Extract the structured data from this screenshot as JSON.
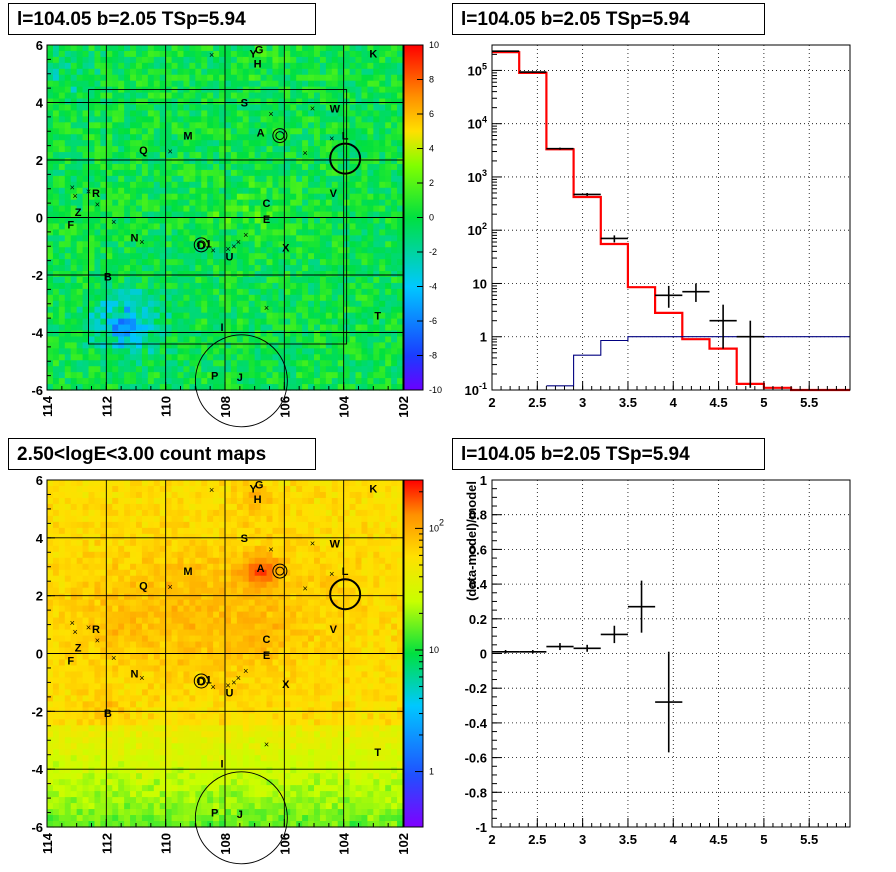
{
  "chart_data": [
    {
      "type": "heatmap",
      "panel": "residual-map",
      "title": "l=104.05 b=2.05 TSp=5.94",
      "xlim": [
        114,
        102
      ],
      "ylim": [
        -6,
        6
      ],
      "x_ticks": [
        "114",
        "112",
        "110",
        "108",
        "106",
        "104",
        "102"
      ],
      "y_ticks": [
        "6",
        "4",
        "2",
        "0",
        "-2",
        "-4",
        "-6"
      ],
      "colorbar": {
        "range": [
          -10,
          10
        ],
        "ticks": [
          "10",
          "8",
          "6",
          "4",
          "2",
          "0",
          "-2",
          "-4",
          "-6",
          "-8",
          "-10"
        ]
      },
      "colors": {
        "low": "#6a00ff",
        "mid": "#00e040",
        "high": "#ff0000"
      },
      "grid": true
    },
    {
      "type": "line",
      "panel": "spectrum",
      "title": "l=104.05 b=2.05 TSp=5.94",
      "xlim": [
        2,
        5.95
      ],
      "ylim": [
        0.1,
        300000
      ],
      "yscale": "log",
      "x_ticks": [
        "2",
        "2.5",
        "3",
        "3.5",
        "4",
        "4.5",
        "5",
        "5.5"
      ],
      "y_ticks": [
        "10^5",
        "10^4",
        "10^3",
        "10^2",
        "10",
        "1",
        "10^-1"
      ],
      "grid": true,
      "series": [
        {
          "color": "#ff0000",
          "style": "step",
          "edges": [
            2,
            2.3,
            2.6,
            2.9,
            3.2,
            3.5,
            3.8,
            4.1,
            4.4,
            4.7,
            5.0,
            5.3,
            5.95
          ],
          "values": [
            220000,
            90000,
            3300,
            420,
            55,
            8.5,
            2.8,
            0.9,
            0.6,
            0.13,
            0.11,
            0.1
          ]
        },
        {
          "color": "#000080",
          "style": "step",
          "edges": [
            2.6,
            2.9,
            3.2,
            3.5,
            5.95
          ],
          "values": [
            0.12,
            0.45,
            0.85,
            1.0
          ]
        },
        {
          "color": "#000000",
          "style": "errorbar",
          "points": [
            {
              "x": 2.15,
              "y": 230000,
              "xerr": 0.15,
              "ylo": 225000,
              "yhi": 235000
            },
            {
              "x": 2.45,
              "y": 93000,
              "xerr": 0.15,
              "ylo": 90000,
              "yhi": 96000
            },
            {
              "x": 2.75,
              "y": 3400,
              "xerr": 0.15,
              "ylo": 3250,
              "yhi": 3550
            },
            {
              "x": 3.05,
              "y": 470,
              "xerr": 0.15,
              "ylo": 440,
              "yhi": 500
            },
            {
              "x": 3.35,
              "y": 70,
              "xerr": 0.15,
              "ylo": 59,
              "yhi": 80
            },
            {
              "x": 3.95,
              "y": 6,
              "xerr": 0.15,
              "ylo": 3.5,
              "yhi": 9
            },
            {
              "x": 4.25,
              "y": 7,
              "xerr": 0.15,
              "ylo": 4.5,
              "yhi": 10
            },
            {
              "x": 4.55,
              "y": 2,
              "xerr": 0.15,
              "ylo": 0.6,
              "yhi": 4
            },
            {
              "x": 4.85,
              "y": 1,
              "xerr": 0.15,
              "ylo": 0.11,
              "yhi": 2.0
            }
          ]
        }
      ]
    },
    {
      "type": "heatmap",
      "panel": "count-map",
      "title": "2.50<logE<3.00 count maps",
      "xlim": [
        114,
        102
      ],
      "ylim": [
        -6,
        6
      ],
      "x_ticks": [
        "114",
        "112",
        "110",
        "108",
        "106",
        "104",
        "102"
      ],
      "y_ticks": [
        "6",
        "4",
        "2",
        "0",
        "-2",
        "-4",
        "-6"
      ],
      "colorbar": {
        "scale": "log",
        "ticks": [
          "10^2",
          "10",
          "1"
        ]
      },
      "colors": {
        "low": "#8000ff",
        "mid": "#00e040",
        "high": "#ff0000"
      },
      "grid": true
    },
    {
      "type": "scatter",
      "panel": "residual-ratio",
      "title": "l=104.05 b=2.05 TSp=5.94",
      "ylabel": "(data-model)/model",
      "xlim": [
        2,
        5.95
      ],
      "ylim": [
        -1,
        1
      ],
      "x_ticks": [
        "2",
        "2.5",
        "3",
        "3.5",
        "4",
        "4.5",
        "5",
        "5.5"
      ],
      "y_ticks": [
        "1",
        "0.8",
        "0.6",
        "0.4",
        "0.2",
        "0",
        "-0.2",
        "-0.4",
        "-0.6",
        "-0.8",
        "-1"
      ],
      "grid": true,
      "points": [
        {
          "x": 2.15,
          "y": 0.01,
          "xerr": 0.15,
          "yerr": 0.01
        },
        {
          "x": 2.45,
          "y": 0.01,
          "xerr": 0.15,
          "yerr": 0.01
        },
        {
          "x": 2.75,
          "y": 0.04,
          "xerr": 0.15,
          "yerr": 0.02
        },
        {
          "x": 3.05,
          "y": 0.03,
          "xerr": 0.15,
          "yerr": 0.02
        },
        {
          "x": 3.35,
          "y": 0.11,
          "xerr": 0.15,
          "yerr": 0.05
        },
        {
          "x": 3.65,
          "y": 0.27,
          "xerr": 0.15,
          "yerr": 0.15
        },
        {
          "x": 3.95,
          "y": -0.28,
          "xerr": 0.15,
          "yerr": 0.29
        }
      ]
    }
  ],
  "sources": [
    {
      "name": "K",
      "l": 103.0,
      "b": 5.7
    },
    {
      "name": "Y",
      "l": 107.05,
      "b": 5.7
    },
    {
      "name": "G",
      "l": 106.85,
      "b": 5.85
    },
    {
      "name": "H",
      "l": 106.9,
      "b": 5.35
    },
    {
      "name": "S",
      "l": 107.35,
      "b": 4.0
    },
    {
      "name": "W",
      "l": 104.3,
      "b": 3.8
    },
    {
      "name": "A",
      "l": 106.8,
      "b": 2.95
    },
    {
      "name": "M",
      "l": 109.25,
      "b": 2.85
    },
    {
      "name": "Q",
      "l": 110.75,
      "b": 2.35
    },
    {
      "name": "L",
      "l": 103.95,
      "b": 2.85
    },
    {
      "name": "R",
      "l": 112.35,
      "b": 0.85
    },
    {
      "name": "V",
      "l": 104.35,
      "b": 0.85
    },
    {
      "name": "C",
      "l": 106.6,
      "b": 0.5
    },
    {
      "name": "Z",
      "l": 112.95,
      "b": 0.2
    },
    {
      "name": "E",
      "l": 106.6,
      "b": -0.05
    },
    {
      "name": "F",
      "l": 113.2,
      "b": -0.25
    },
    {
      "name": "N",
      "l": 111.05,
      "b": -0.7
    },
    {
      "name": "1",
      "l": 108.55,
      "b": -0.9
    },
    {
      "name": "D",
      "l": 108.8,
      "b": -0.95
    },
    {
      "name": "X",
      "l": 105.95,
      "b": -1.05
    },
    {
      "name": "U",
      "l": 107.85,
      "b": -1.35
    },
    {
      "name": "B",
      "l": 111.95,
      "b": -2.05
    },
    {
      "name": "T",
      "l": 102.85,
      "b": -3.4
    },
    {
      "name": "I",
      "l": 108.1,
      "b": -3.8
    },
    {
      "name": "P",
      "l": 108.35,
      "b": -5.5
    },
    {
      "name": "J",
      "l": 107.5,
      "b": -5.55
    }
  ],
  "colors": {
    "frame": "#000000",
    "grid": "#000000"
  }
}
